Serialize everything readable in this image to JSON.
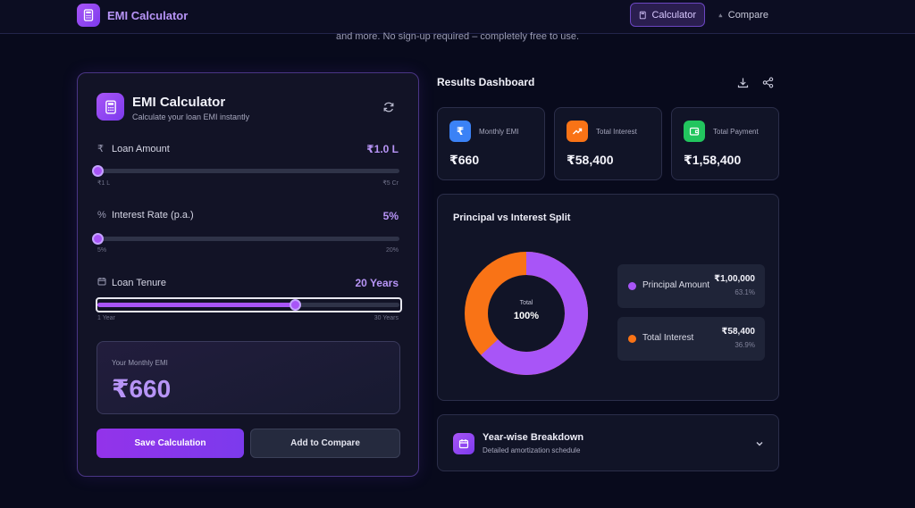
{
  "nav": {
    "brand": "EMI Calculator",
    "calculator_label": "Calculator",
    "compare_label": "Compare"
  },
  "tagline": "and more. No sign-up required – completely free to use.",
  "calculator": {
    "title": "EMI Calculator",
    "subtitle": "Calculate your loan EMI instantly",
    "loan_amount": {
      "symbol": "₹",
      "label": "Loan Amount",
      "value": "₹1.0 L",
      "min_label": "₹1 L",
      "max_label": "₹5 Cr",
      "level": 0.0
    },
    "interest_rate": {
      "symbol": "%",
      "label": "Interest Rate (p.a.)",
      "value": "5%",
      "min_label": "5%",
      "max_label": "20%",
      "level": 0.0
    },
    "tenure": {
      "label": "Loan Tenure",
      "value": "20 Years",
      "min_label": "1 Year",
      "max_label": "30 Years",
      "level": 0.655
    },
    "monthly_emi_label": "Your Monthly EMI",
    "monthly_emi_value": "₹660",
    "save_button": "Save Calculation",
    "compare_button": "Add to Compare"
  },
  "results": {
    "title": "Results Dashboard",
    "stats": [
      {
        "label": "Monthly EMI",
        "value": "₹660",
        "icon": "rupee-icon",
        "color": "#3b82f6"
      },
      {
        "label": "Total Interest",
        "value": "₹58,400",
        "icon": "trending-up-icon",
        "color": "#f97316"
      },
      {
        "label": "Total Payment",
        "value": "₹1,58,400",
        "icon": "wallet-icon",
        "color": "#22c55e"
      }
    ],
    "split": {
      "title": "Principal vs Interest Split",
      "center_label": "Total",
      "center_value": "100%",
      "principal": {
        "label": "Principal Amount",
        "amount": "₹1,00,000",
        "percent": "63.1%",
        "share": 0.631,
        "color": "#a855f7"
      },
      "interest": {
        "label": "Total Interest",
        "amount": "₹58,400",
        "percent": "36.9%",
        "share": 0.369,
        "color": "#f97316"
      }
    },
    "breakdown": {
      "title": "Year-wise Breakdown",
      "subtitle": "Detailed amortization schedule"
    }
  }
}
